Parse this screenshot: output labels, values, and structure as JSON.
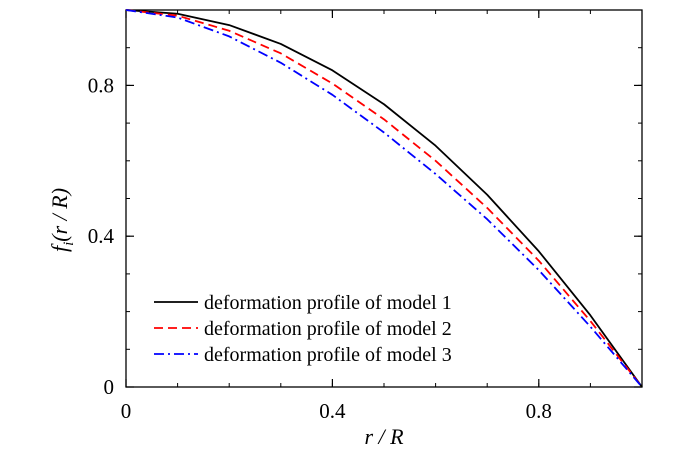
{
  "chart_data": {
    "type": "line",
    "title": "",
    "xlabel": "r / R",
    "ylabel_main": "f",
    "ylabel_sub": "i",
    "ylabel_rest": "(r / R)",
    "xlim": [
      0,
      1
    ],
    "ylim": [
      0,
      1
    ],
    "xticks": [
      0,
      0.4,
      0.8
    ],
    "xtick_labels": [
      "0",
      "0.4",
      "0.8"
    ],
    "yticks": [
      0,
      0.4,
      0.8
    ],
    "ytick_labels": [
      "0",
      "0.4",
      "0.8"
    ],
    "grid": false,
    "legend_position": "bottom-left",
    "series": [
      {
        "name": "deformation profile of model 1",
        "color": "#000000",
        "style": "solid",
        "x": [
          0,
          0.1,
          0.2,
          0.3,
          0.4,
          0.5,
          0.6,
          0.7,
          0.8,
          0.9,
          1.0
        ],
        "y": [
          1.0,
          0.99,
          0.96,
          0.91,
          0.84,
          0.75,
          0.64,
          0.51,
          0.36,
          0.19,
          0.0
        ]
      },
      {
        "name": "deformation profile of model 2",
        "color": "#ff0000",
        "style": "dashed",
        "x": [
          0,
          0.1,
          0.2,
          0.3,
          0.4,
          0.5,
          0.6,
          0.7,
          0.8,
          0.9,
          1.0
        ],
        "y": [
          1.0,
          0.985,
          0.945,
          0.885,
          0.805,
          0.71,
          0.6,
          0.475,
          0.335,
          0.175,
          0.0
        ]
      },
      {
        "name": "deformation profile of model 3",
        "color": "#0000ff",
        "style": "dashdot",
        "x": [
          0,
          0.1,
          0.2,
          0.3,
          0.4,
          0.5,
          0.6,
          0.7,
          0.8,
          0.9,
          1.0
        ],
        "y": [
          1.0,
          0.98,
          0.93,
          0.86,
          0.775,
          0.675,
          0.565,
          0.445,
          0.31,
          0.16,
          0.0
        ]
      }
    ]
  }
}
